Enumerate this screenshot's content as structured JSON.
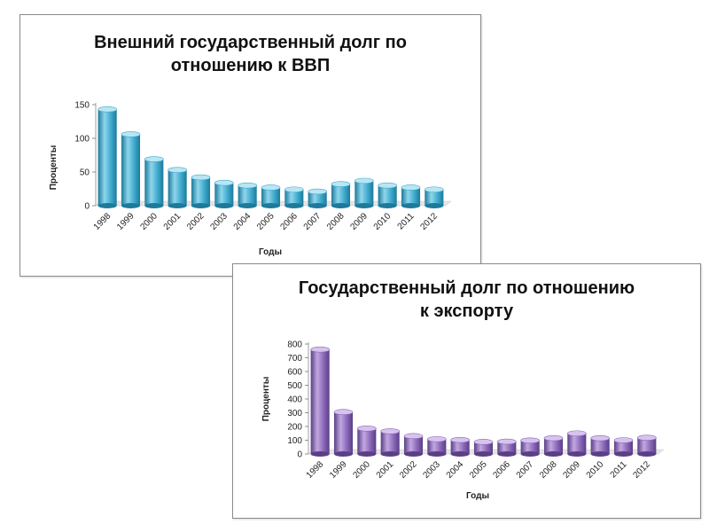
{
  "chart_data": [
    {
      "type": "bar",
      "title_lines": [
        "Внешний государственный долг по",
        "отношению к ВВП"
      ],
      "xlabel": "Годы",
      "ylabel": "Проценты",
      "categories": [
        "1998",
        "1999",
        "2000",
        "2001",
        "2002",
        "2003",
        "2004",
        "2005",
        "2006",
        "2007",
        "2008",
        "2009",
        "2010",
        "2011",
        "2012"
      ],
      "values": [
        143,
        106,
        69,
        53,
        42,
        34,
        30,
        27,
        24,
        21,
        32,
        37,
        30,
        27,
        24
      ],
      "ylim": [
        0,
        150
      ],
      "yticks": [
        0,
        50,
        100,
        150
      ],
      "grid": false,
      "legend": "none",
      "colors": {
        "bar": "#3ea9cc",
        "bar_light": "#8fd6ec",
        "bar_dark": "#1d7a9a",
        "top": "#b8e6f4"
      }
    },
    {
      "type": "bar",
      "title_lines": [
        "Государственный долг по отношению",
        "к экспорту"
      ],
      "xlabel": "Годы",
      "ylabel": "Проценты",
      "categories": [
        "1998",
        "1999",
        "2000",
        "2001",
        "2002",
        "2003",
        "2004",
        "2005",
        "2006",
        "2007",
        "2008",
        "2009",
        "2010",
        "2011",
        "2012"
      ],
      "values": [
        760,
        305,
        185,
        165,
        130,
        108,
        102,
        88,
        90,
        98,
        115,
        150,
        115,
        100,
        118
      ],
      "ylim": [
        0,
        800
      ],
      "yticks": [
        0,
        100,
        200,
        300,
        400,
        500,
        600,
        700,
        800
      ],
      "grid": false,
      "legend": "none",
      "colors": {
        "bar": "#8a66b8",
        "bar_light": "#c2a8e0",
        "bar_dark": "#5a3f86",
        "top": "#d6c4ee"
      }
    }
  ]
}
